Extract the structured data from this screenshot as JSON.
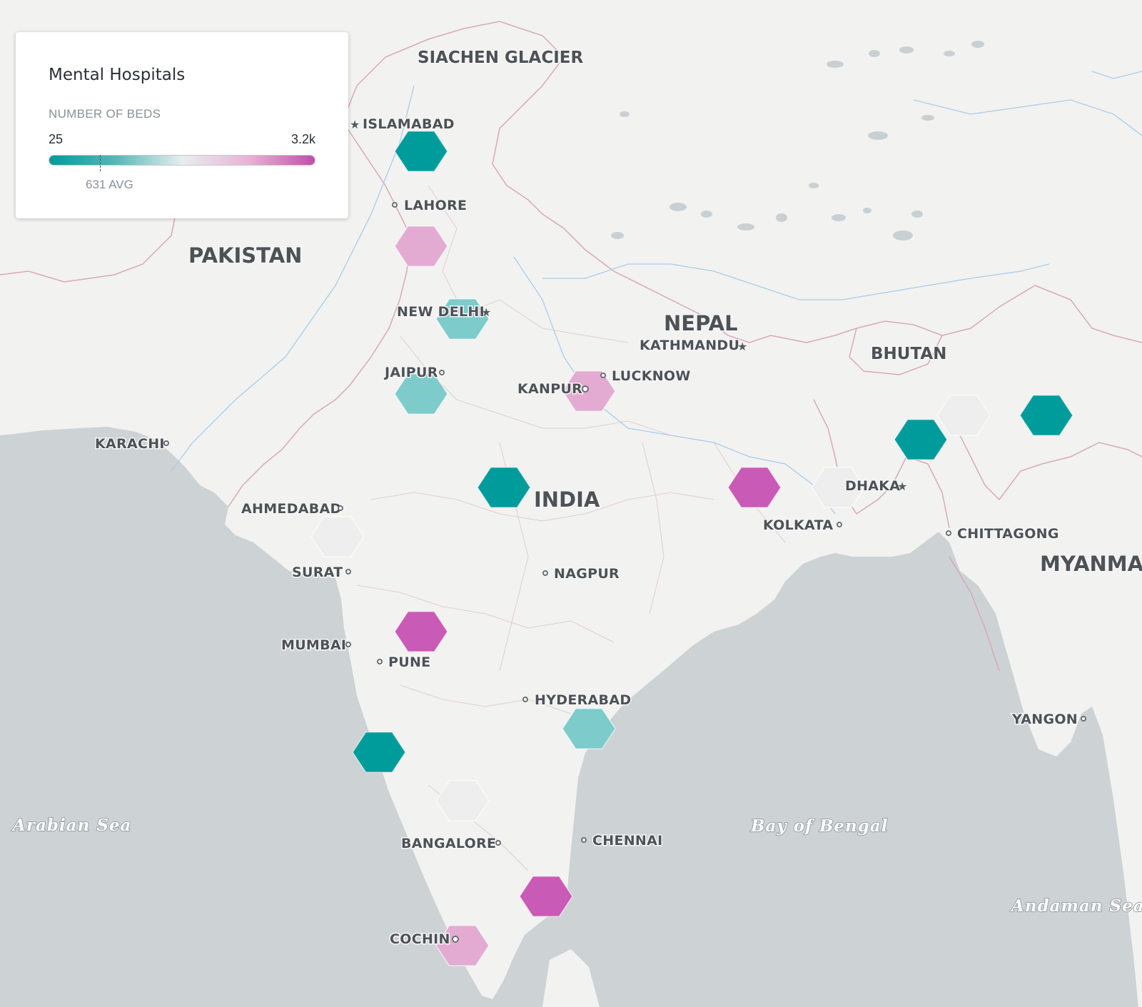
{
  "legend": {
    "title": "Mental Hospitals",
    "subtitle": "NUMBER OF BEDS",
    "min_label": "25",
    "max_label": "3.2k",
    "avg_label": "631 AVG",
    "min": 25,
    "max": 3200,
    "avg": 631,
    "colors": [
      "#009b9b",
      "#7dcbcb",
      "#eeeeee",
      "#e3abd2",
      "#c95ab5"
    ]
  },
  "map_labels": {
    "countries": [
      "PAKISTAN",
      "INDIA",
      "NEPAL",
      "BHUTAN",
      "MYANMAR"
    ],
    "regions": [
      "SIACHEN GLACIER"
    ],
    "cities": [
      "ISLAMABAD",
      "LAHORE",
      "NEW DELHI",
      "JAIPUR",
      "KANPUR",
      "LUCKNOW",
      "KATHMANDU",
      "KARACHI",
      "AHMEDABAD",
      "SURAT",
      "MUMBAI",
      "PUNE",
      "NAGPUR",
      "HYDERABAD",
      "BANGALORE",
      "CHENNAI",
      "COCHIN",
      "KOLKATA",
      "DHAKA",
      "CHITTAGONG",
      "YANGON"
    ],
    "seas": [
      "Arabian Sea",
      "Bay of Bengal",
      "Andaman Sea"
    ]
  },
  "bins": [
    {
      "id": "islamabad",
      "color": "#009b9b"
    },
    {
      "id": "punjab",
      "color": "#e3abd2"
    },
    {
      "id": "delhi",
      "color": "#7dcbcb"
    },
    {
      "id": "jaipur",
      "color": "#7dcbcb"
    },
    {
      "id": "lucknow",
      "color": "#e3abd2"
    },
    {
      "id": "central-india",
      "color": "#009b9b"
    },
    {
      "id": "bihar",
      "color": "#c95ab5"
    },
    {
      "id": "bengal",
      "color": "#eeeeee"
    },
    {
      "id": "meghalaya",
      "color": "#009b9b"
    },
    {
      "id": "assam",
      "color": "#eeeeee"
    },
    {
      "id": "arunachal",
      "color": "#009b9b"
    },
    {
      "id": "gujarat",
      "color": "#eeeeee"
    },
    {
      "id": "maharashtra",
      "color": "#c95ab5"
    },
    {
      "id": "goa",
      "color": "#009b9b"
    },
    {
      "id": "andhra",
      "color": "#7dcbcb"
    },
    {
      "id": "karnataka",
      "color": "#eeeeee"
    },
    {
      "id": "tamilnadu",
      "color": "#c95ab5"
    },
    {
      "id": "kerala",
      "color": "#e3abd2"
    }
  ]
}
